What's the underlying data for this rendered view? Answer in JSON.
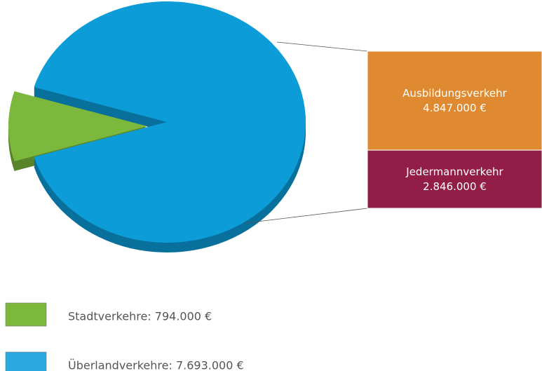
{
  "chart_data": {
    "type": "pie-of-bar",
    "categories": [
      "Stadtverkehre: 794.000 €",
      "Überlandverkehre: 7.693.000 €"
    ],
    "values": [
      794000,
      7693000
    ],
    "colors": [
      "#7cb83c",
      "#0c9cd8"
    ],
    "legend_colors": [
      "#7cb83c",
      "#2aa9e0"
    ],
    "breakdown": {
      "categories": [
        "Ausbildungsverkehr",
        "Jedermannverkehr"
      ],
      "values": [
        4847000,
        2846000
      ],
      "value_labels": [
        "4.847.000 €",
        "2.846.000 €"
      ],
      "colors": [
        "#df8a30",
        "#921d46"
      ]
    }
  }
}
